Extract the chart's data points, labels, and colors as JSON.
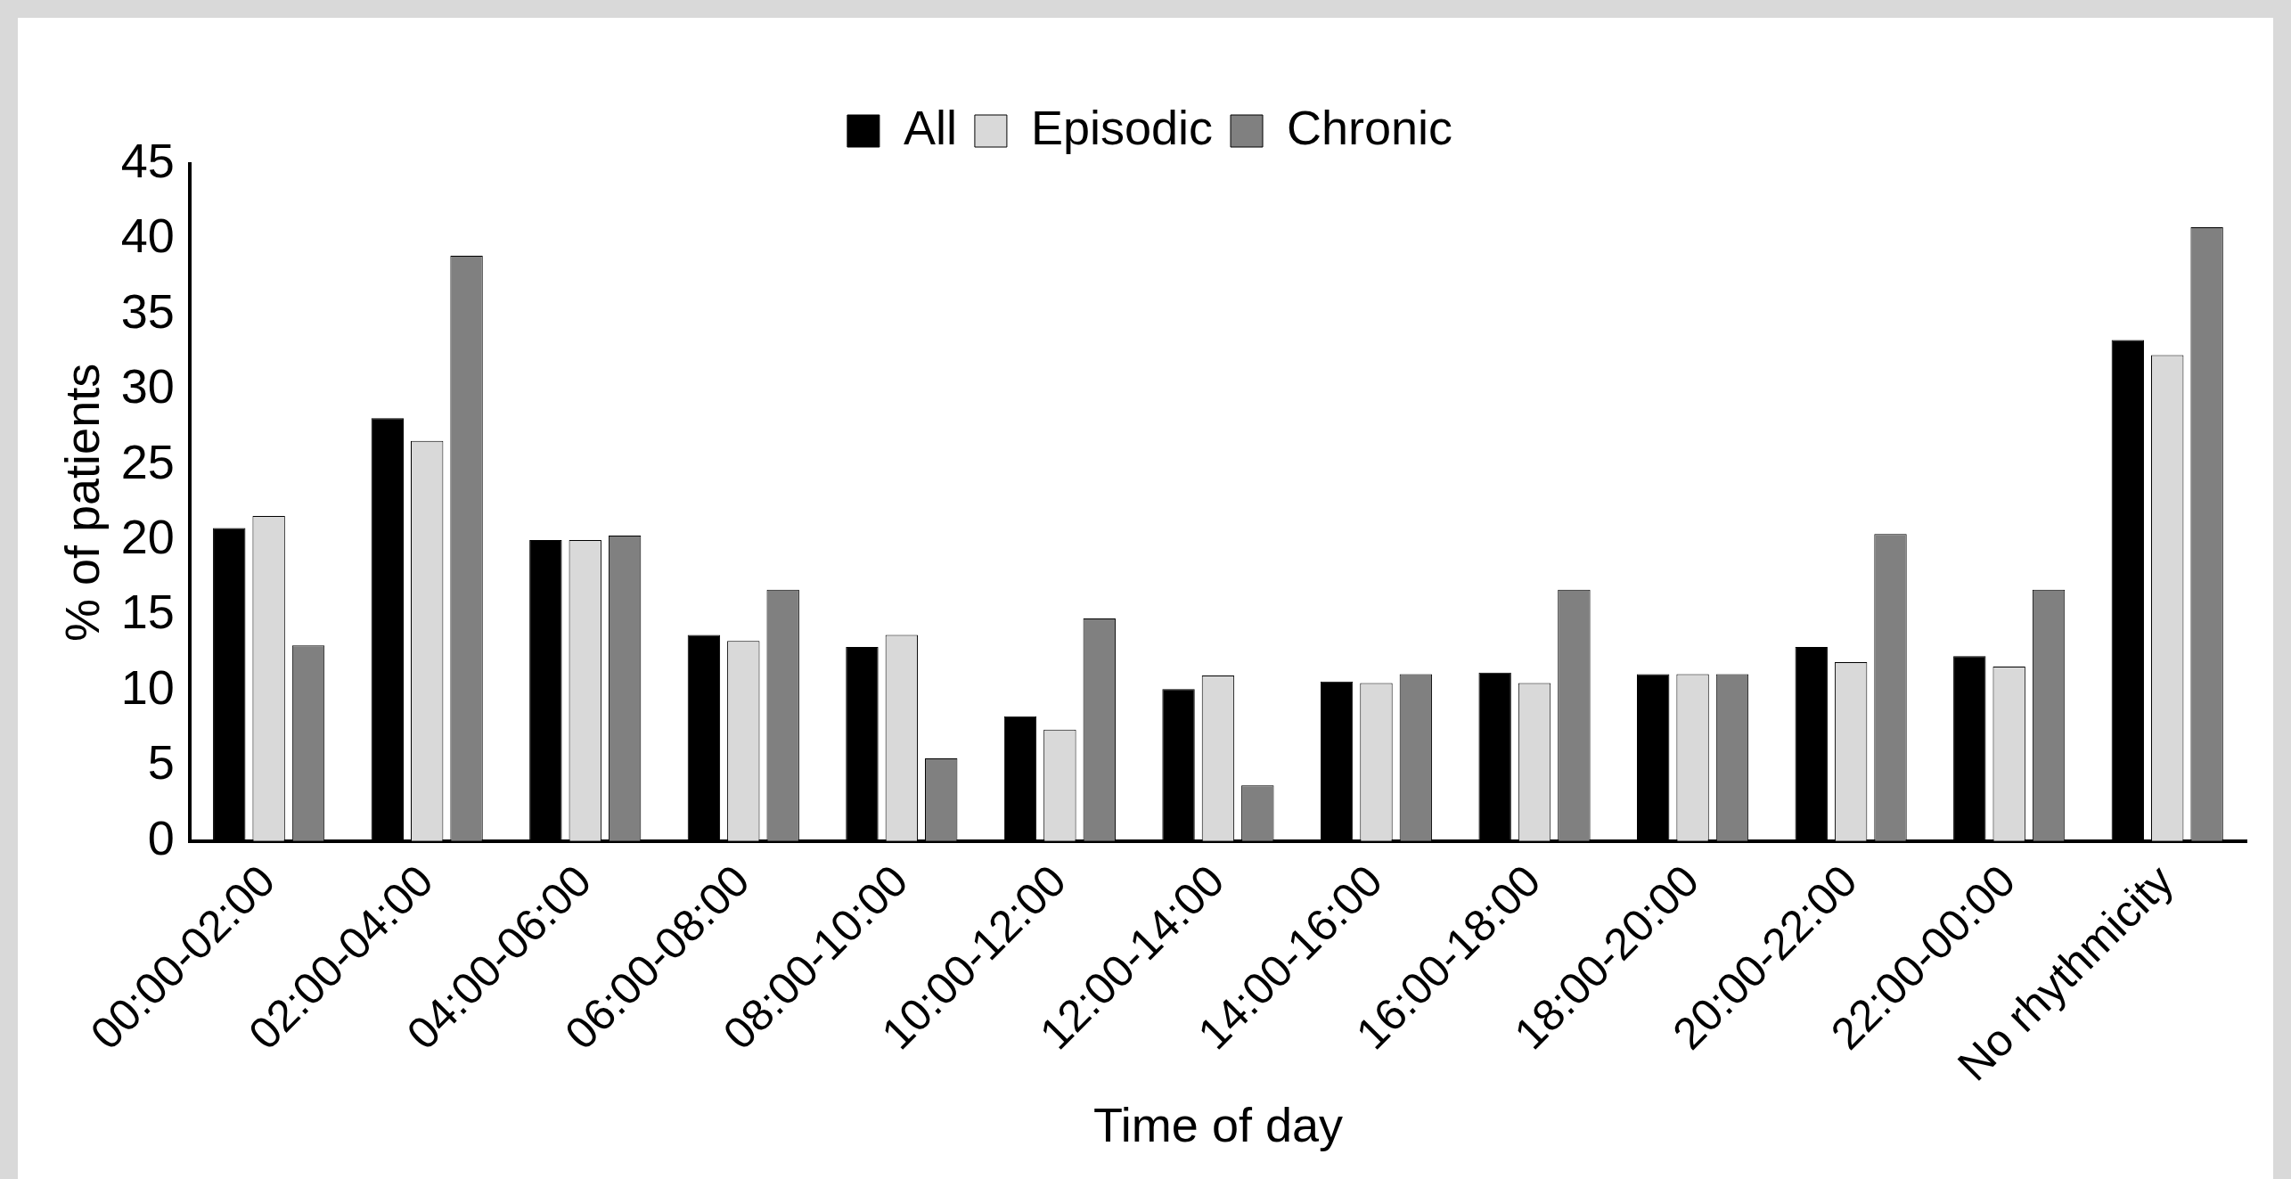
{
  "chart_data": {
    "type": "bar",
    "xlabel": "Time of day",
    "ylabel": "% of patients",
    "categories": [
      "00:00-02:00",
      "02:00-04:00",
      "04:00-06:00",
      "06:00-08:00",
      "08:00-10:00",
      "10:00-12:00",
      "12:00-14:00",
      "14:00-16:00",
      "16:00-18:00",
      "18:00-20:00",
      "20:00-22:00",
      "22:00-00:00",
      "No rhythmicity"
    ],
    "series": [
      {
        "name": "All",
        "color": "#000000",
        "values": [
          20.8,
          28.1,
          20.0,
          13.7,
          12.9,
          8.3,
          10.1,
          10.6,
          11.2,
          11.1,
          12.9,
          12.3,
          33.3
        ]
      },
      {
        "name": "Episodic",
        "color": "#d9d9d9",
        "values": [
          21.6,
          26.6,
          20.0,
          13.3,
          13.7,
          7.4,
          11.0,
          10.5,
          10.5,
          11.1,
          11.9,
          11.6,
          32.3
        ]
      },
      {
        "name": "Chronic",
        "color": "#808080",
        "values": [
          13.0,
          38.9,
          20.3,
          16.7,
          5.5,
          14.8,
          3.7,
          11.1,
          16.7,
          11.1,
          20.4,
          16.7,
          40.8
        ]
      }
    ],
    "ylim": [
      0,
      45
    ],
    "yticks": [
      0,
      5,
      10,
      15,
      20,
      25,
      30,
      35,
      40,
      45
    ],
    "grid": false,
    "legend": "top"
  }
}
